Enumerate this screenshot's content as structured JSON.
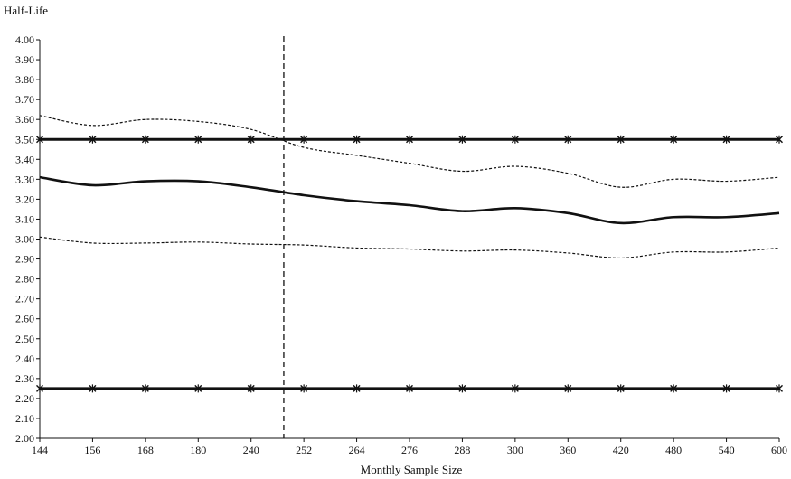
{
  "chart_data": {
    "type": "line",
    "ylabel": "Half-Life",
    "xlabel": "Monthly Sample Size",
    "categories": [
      "144",
      "156",
      "168",
      "180",
      "240",
      "252",
      "264",
      "276",
      "288",
      "300",
      "360",
      "420",
      "480",
      "540",
      "600"
    ],
    "ylim": [
      2.0,
      4.0
    ],
    "ytick_step": 0.1,
    "grid": false,
    "legend": "none",
    "series": [
      {
        "style": "solid-thick",
        "values": [
          3.31,
          3.27,
          3.29,
          3.29,
          3.26,
          3.22,
          3.19,
          3.17,
          3.14,
          3.155,
          3.13,
          3.08,
          3.11,
          3.11,
          3.13
        ]
      },
      {
        "style": "dotted-upper",
        "values": [
          3.62,
          3.57,
          3.6,
          3.59,
          3.55,
          3.46,
          3.42,
          3.38,
          3.34,
          3.365,
          3.33,
          3.26,
          3.3,
          3.29,
          3.31
        ]
      },
      {
        "style": "dotted-lower",
        "values": [
          3.01,
          2.98,
          2.98,
          2.985,
          2.975,
          2.97,
          2.955,
          2.95,
          2.94,
          2.945,
          2.93,
          2.905,
          2.935,
          2.935,
          2.955
        ]
      },
      {
        "style": "star-line",
        "values": [
          3.5,
          3.5,
          3.5,
          3.5,
          3.5,
          3.5,
          3.5,
          3.5,
          3.5,
          3.5,
          3.5,
          3.5,
          3.5,
          3.5,
          3.5
        ]
      },
      {
        "style": "star-line",
        "values": [
          2.25,
          2.25,
          2.25,
          2.25,
          2.25,
          2.25,
          2.25,
          2.25,
          2.25,
          2.25,
          2.25,
          2.25,
          2.25,
          2.25,
          2.25
        ]
      }
    ],
    "vertical_reference_line": {
      "x_position_between": [
        "240",
        "252"
      ],
      "fraction": 0.62,
      "style": "dashed"
    },
    "colors": {
      "ink": "#111111"
    }
  }
}
